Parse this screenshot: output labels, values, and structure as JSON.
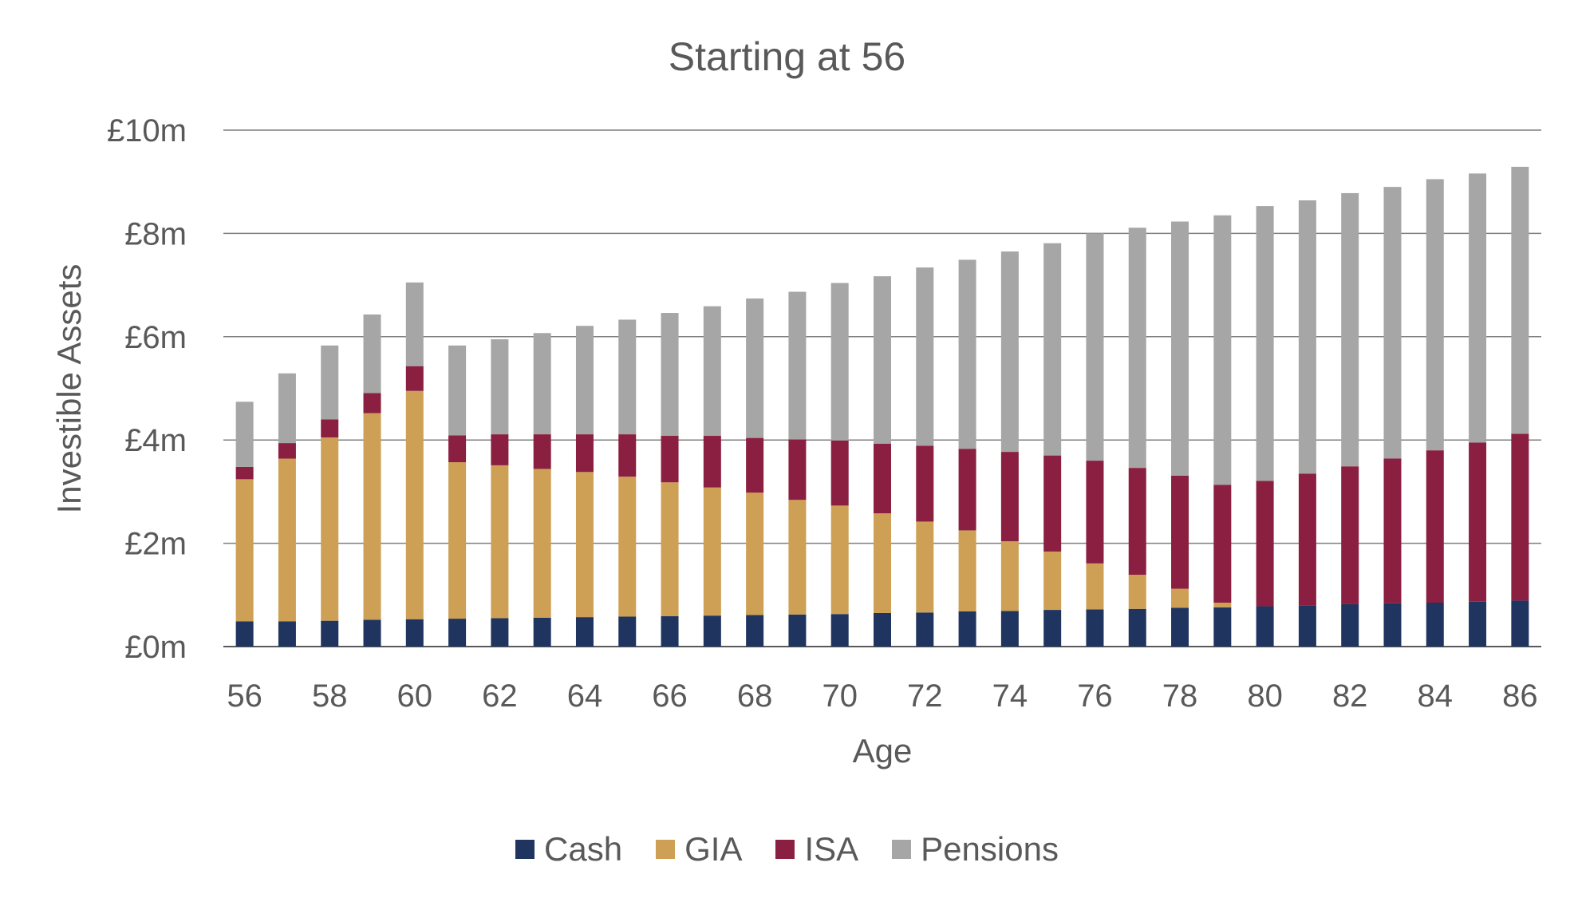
{
  "chart_data": {
    "type": "bar",
    "stacked": true,
    "title": "Starting at 56",
    "xlabel": "Age",
    "ylabel": "Investible Assets",
    "ylim": [
      0,
      10
    ],
    "y_ticks": [
      {
        "value": 0,
        "label": "£0m"
      },
      {
        "value": 2,
        "label": "£2m"
      },
      {
        "value": 4,
        "label": "£4m"
      },
      {
        "value": 6,
        "label": "£6m"
      },
      {
        "value": 8,
        "label": "£8m"
      },
      {
        "value": 10,
        "label": "£10m"
      }
    ],
    "grid": true,
    "legend_position": "bottom",
    "categories": [
      56,
      57,
      58,
      59,
      60,
      61,
      62,
      63,
      64,
      65,
      66,
      67,
      68,
      69,
      70,
      71,
      72,
      73,
      74,
      75,
      76,
      77,
      78,
      79,
      80,
      81,
      82,
      83,
      84,
      85,
      86
    ],
    "x_tick_labels": [
      "56",
      "58",
      "60",
      "62",
      "64",
      "66",
      "68",
      "70",
      "72",
      "74",
      "76",
      "78",
      "80",
      "82",
      "84",
      "86"
    ],
    "series": [
      {
        "name": "Cash",
        "color": "#1F3560",
        "values": [
          0.49,
          0.49,
          0.5,
          0.52,
          0.53,
          0.54,
          0.55,
          0.56,
          0.57,
          0.58,
          0.59,
          0.6,
          0.61,
          0.62,
          0.63,
          0.65,
          0.66,
          0.68,
          0.69,
          0.71,
          0.72,
          0.73,
          0.75,
          0.76,
          0.78,
          0.8,
          0.82,
          0.84,
          0.85,
          0.87,
          0.89
        ]
      },
      {
        "name": "GIA",
        "color": "#CDA055",
        "values": [
          2.75,
          3.15,
          3.55,
          4.0,
          4.42,
          3.03,
          2.96,
          2.88,
          2.81,
          2.71,
          2.59,
          2.48,
          2.37,
          2.22,
          2.1,
          1.93,
          1.76,
          1.57,
          1.35,
          1.13,
          0.89,
          0.66,
          0.37,
          0.09,
          0,
          0,
          0,
          0,
          0,
          0,
          0
        ]
      },
      {
        "name": "ISA",
        "color": "#8B1F41",
        "values": [
          0.24,
          0.3,
          0.35,
          0.39,
          0.48,
          0.52,
          0.6,
          0.67,
          0.73,
          0.82,
          0.9,
          1.0,
          1.06,
          1.17,
          1.26,
          1.35,
          1.47,
          1.58,
          1.73,
          1.86,
          1.99,
          2.07,
          2.19,
          2.28,
          2.43,
          2.55,
          2.67,
          2.8,
          2.95,
          3.08,
          3.23
        ]
      },
      {
        "name": "Pensions",
        "color": "#A6A6A6",
        "values": [
          1.26,
          1.35,
          1.43,
          1.52,
          1.62,
          1.74,
          1.84,
          1.96,
          2.1,
          2.22,
          2.38,
          2.51,
          2.7,
          2.86,
          3.05,
          3.24,
          3.45,
          3.66,
          3.88,
          4.11,
          4.4,
          4.65,
          4.92,
          5.22,
          5.32,
          5.29,
          5.29,
          5.26,
          5.25,
          5.21,
          5.17
        ]
      }
    ]
  }
}
